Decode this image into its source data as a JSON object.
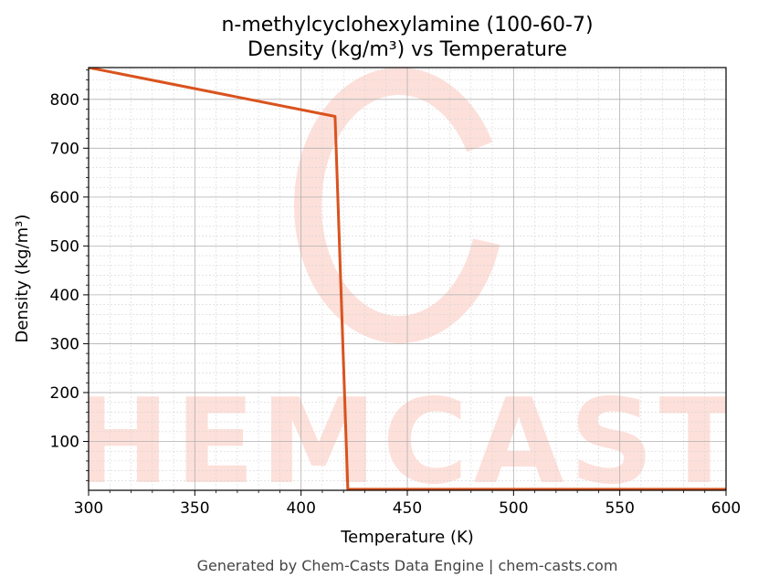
{
  "chart_data": {
    "type": "line",
    "title": "n-methylcyclohexylamine (100-60-7)",
    "subtitle": "Density (kg/m³) vs Temperature",
    "xlabel": "Temperature (K)",
    "ylabel": "Density (kg/m³)",
    "xlim": [
      300,
      600
    ],
    "ylim": [
      0,
      865
    ],
    "x_ticks": [
      300,
      350,
      400,
      450,
      500,
      550,
      600
    ],
    "y_ticks": [
      100,
      200,
      300,
      400,
      500,
      600,
      700,
      800
    ],
    "grid": true,
    "minor_grid": true,
    "series": [
      {
        "color": "#d9531e",
        "x": [
          300,
          416,
          422,
          600
        ],
        "y": [
          865,
          765,
          2,
          2
        ]
      }
    ]
  },
  "watermark": {
    "text": "CHEMCASTS",
    "color": "#fde0da"
  },
  "footer": "Generated by Chem-Casts Data Engine | chem-casts.com"
}
